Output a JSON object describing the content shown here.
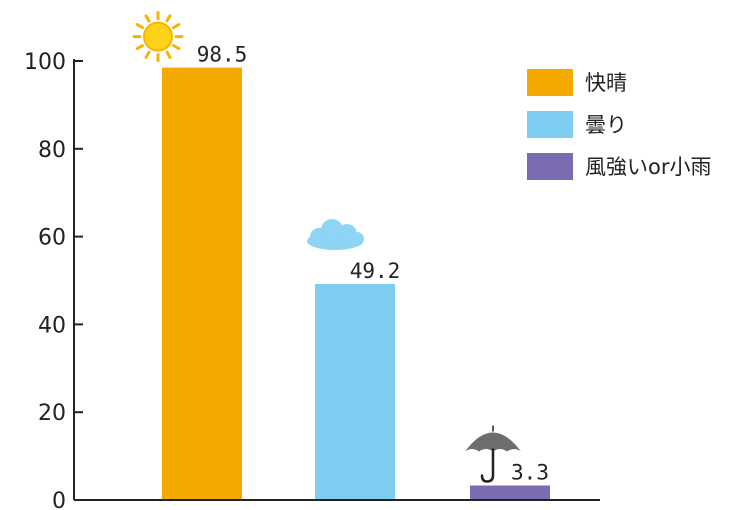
{
  "chart_data": {
    "type": "bar",
    "categories": [
      "快晴",
      "曇り",
      "風強いor小雨"
    ],
    "values": [
      98.5,
      49.2,
      3.3
    ],
    "data_labels": [
      "98.5",
      "49.2",
      "3.3"
    ],
    "ylim": [
      0,
      100
    ],
    "yticks": [
      0,
      20,
      40,
      60,
      80,
      100
    ],
    "grid": false,
    "legend_position": "top-right",
    "colors": [
      "#F5A800",
      "#7DCDF0",
      "#7B6BB0"
    ],
    "icons": [
      "sun-icon",
      "cloud-icon",
      "umbrella-icon"
    ]
  }
}
